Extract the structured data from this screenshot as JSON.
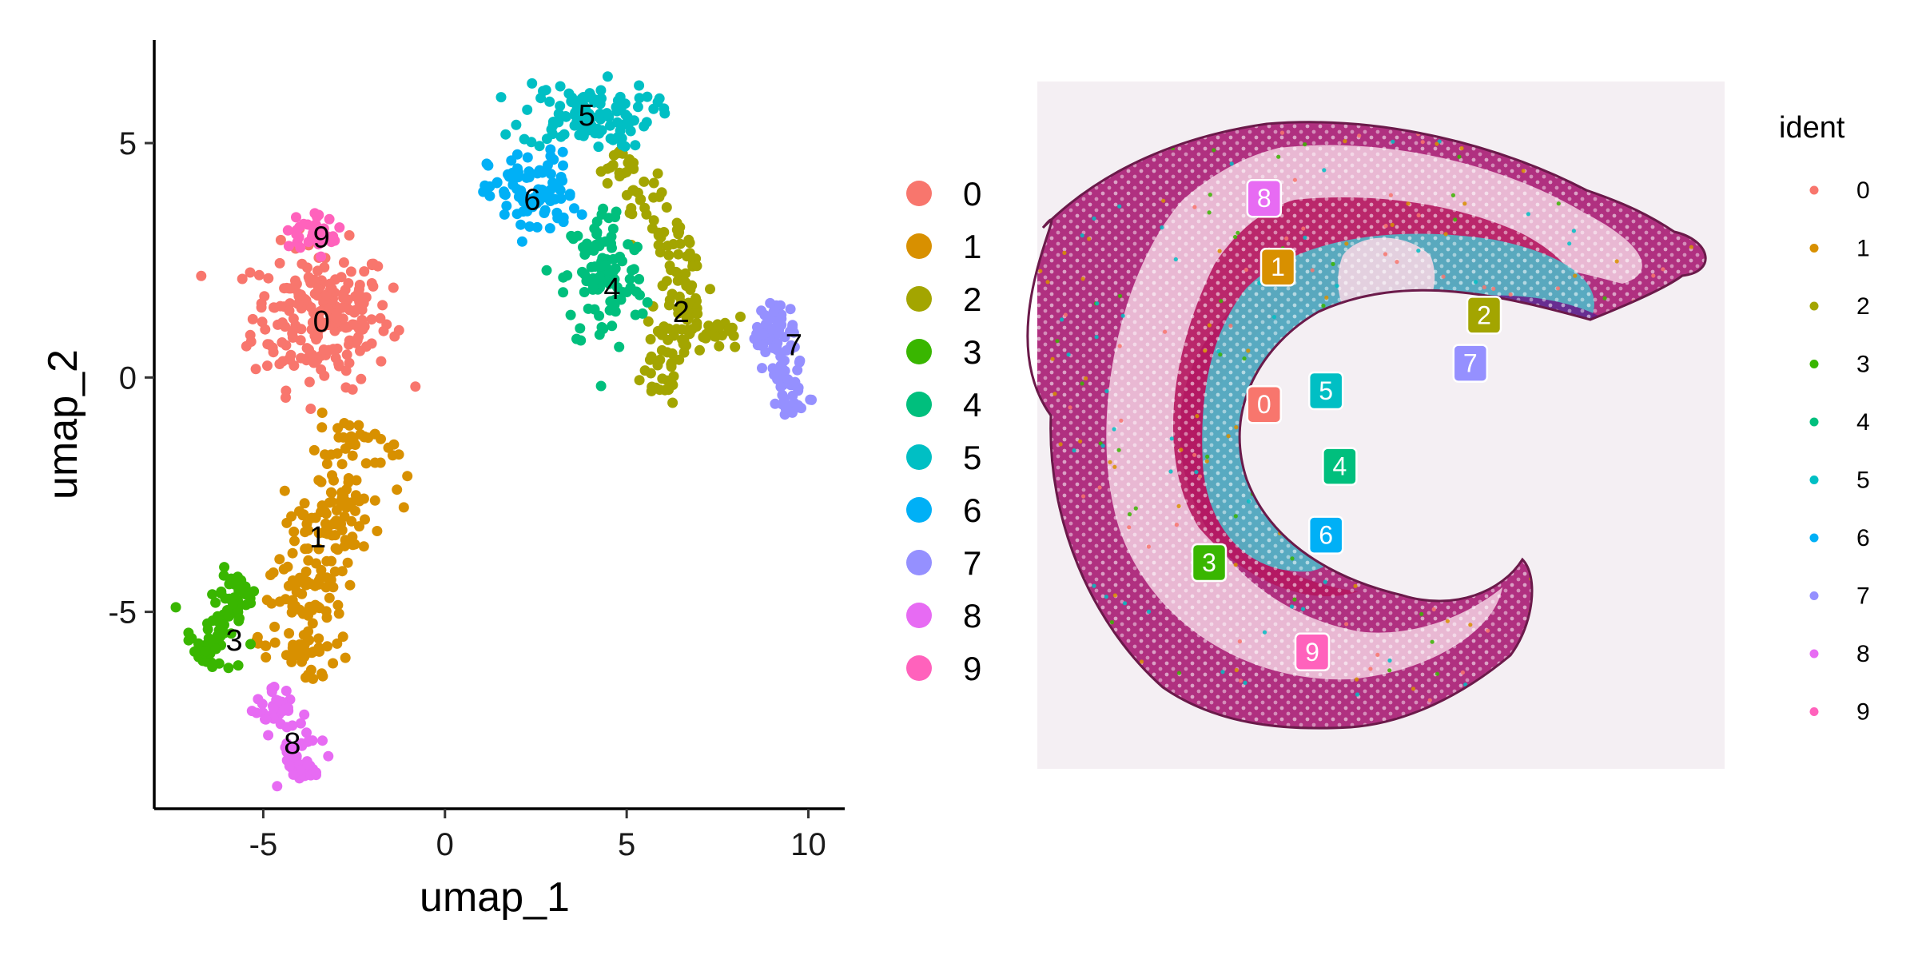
{
  "chart_data": [
    {
      "type": "scatter",
      "xlabel": "umap_1",
      "ylabel": "umap_2",
      "xlim": [
        -8,
        11
      ],
      "ylim": [
        -9.2,
        7.2
      ],
      "x_ticks": [
        -5,
        0,
        5,
        10
      ],
      "y_ticks": [
        -5,
        0,
        5
      ],
      "x_tick_labels": [
        "-5",
        "0",
        "5",
        "10"
      ],
      "y_tick_labels": [
        "-5",
        "0",
        "5"
      ],
      "grid": false,
      "legend_position": "right",
      "clusters": [
        {
          "label": "0",
          "color": "#F8766D",
          "center": [
            -3.4,
            1.2
          ],
          "text_pos": [
            -3.4,
            1.2
          ]
        },
        {
          "label": "1",
          "color": "#D89000",
          "center": [
            -3.5,
            -3.3
          ],
          "text_pos": [
            -3.5,
            -3.4
          ]
        },
        {
          "label": "2",
          "color": "#A3A500",
          "center": [
            6.2,
            1.4
          ],
          "text_pos": [
            6.5,
            1.4
          ]
        },
        {
          "label": "3",
          "color": "#39B600",
          "center": [
            -6.0,
            -5.4
          ],
          "text_pos": [
            -5.8,
            -5.6
          ]
        },
        {
          "label": "4",
          "color": "#00BF7D",
          "center": [
            4.4,
            2.0
          ],
          "text_pos": [
            4.6,
            1.9
          ]
        },
        {
          "label": "5",
          "color": "#00BFC4",
          "center": [
            3.9,
            5.6
          ],
          "text_pos": [
            3.9,
            5.6
          ]
        },
        {
          "label": "6",
          "color": "#00B0F6",
          "center": [
            2.3,
            3.9
          ],
          "text_pos": [
            2.4,
            3.8
          ]
        },
        {
          "label": "7",
          "color": "#9590FF",
          "center": [
            9.6,
            0.6
          ],
          "text_pos": [
            9.6,
            0.7
          ]
        },
        {
          "label": "8",
          "color": "#E76BF3",
          "center": [
            -4.2,
            -7.8
          ],
          "text_pos": [
            -4.2,
            -7.8
          ]
        },
        {
          "label": "9",
          "color": "#FF62BC",
          "center": [
            -3.6,
            3.0
          ],
          "text_pos": [
            -3.4,
            3.0
          ]
        }
      ]
    },
    {
      "type": "spatial",
      "legend_title": "ident",
      "legend_position": "right",
      "labels": [
        {
          "label": "0",
          "color": "#F8766D",
          "pos": [
            0.33,
            0.47
          ]
        },
        {
          "label": "1",
          "color": "#D89000",
          "pos": [
            0.35,
            0.27
          ]
        },
        {
          "label": "2",
          "color": "#A3A500",
          "pos": [
            0.65,
            0.34
          ]
        },
        {
          "label": "3",
          "color": "#39B600",
          "pos": [
            0.25,
            0.7
          ]
        },
        {
          "label": "4",
          "color": "#00BF7D",
          "pos": [
            0.44,
            0.56
          ]
        },
        {
          "label": "5",
          "color": "#00BFC4",
          "pos": [
            0.42,
            0.45
          ]
        },
        {
          "label": "6",
          "color": "#00B0F6",
          "pos": [
            0.42,
            0.66
          ]
        },
        {
          "label": "7",
          "color": "#9590FF",
          "pos": [
            0.63,
            0.41
          ]
        },
        {
          "label": "8",
          "color": "#E76BF3",
          "pos": [
            0.33,
            0.17
          ]
        },
        {
          "label": "9",
          "color": "#FF62BC",
          "pos": [
            0.4,
            0.83
          ]
        }
      ]
    }
  ]
}
